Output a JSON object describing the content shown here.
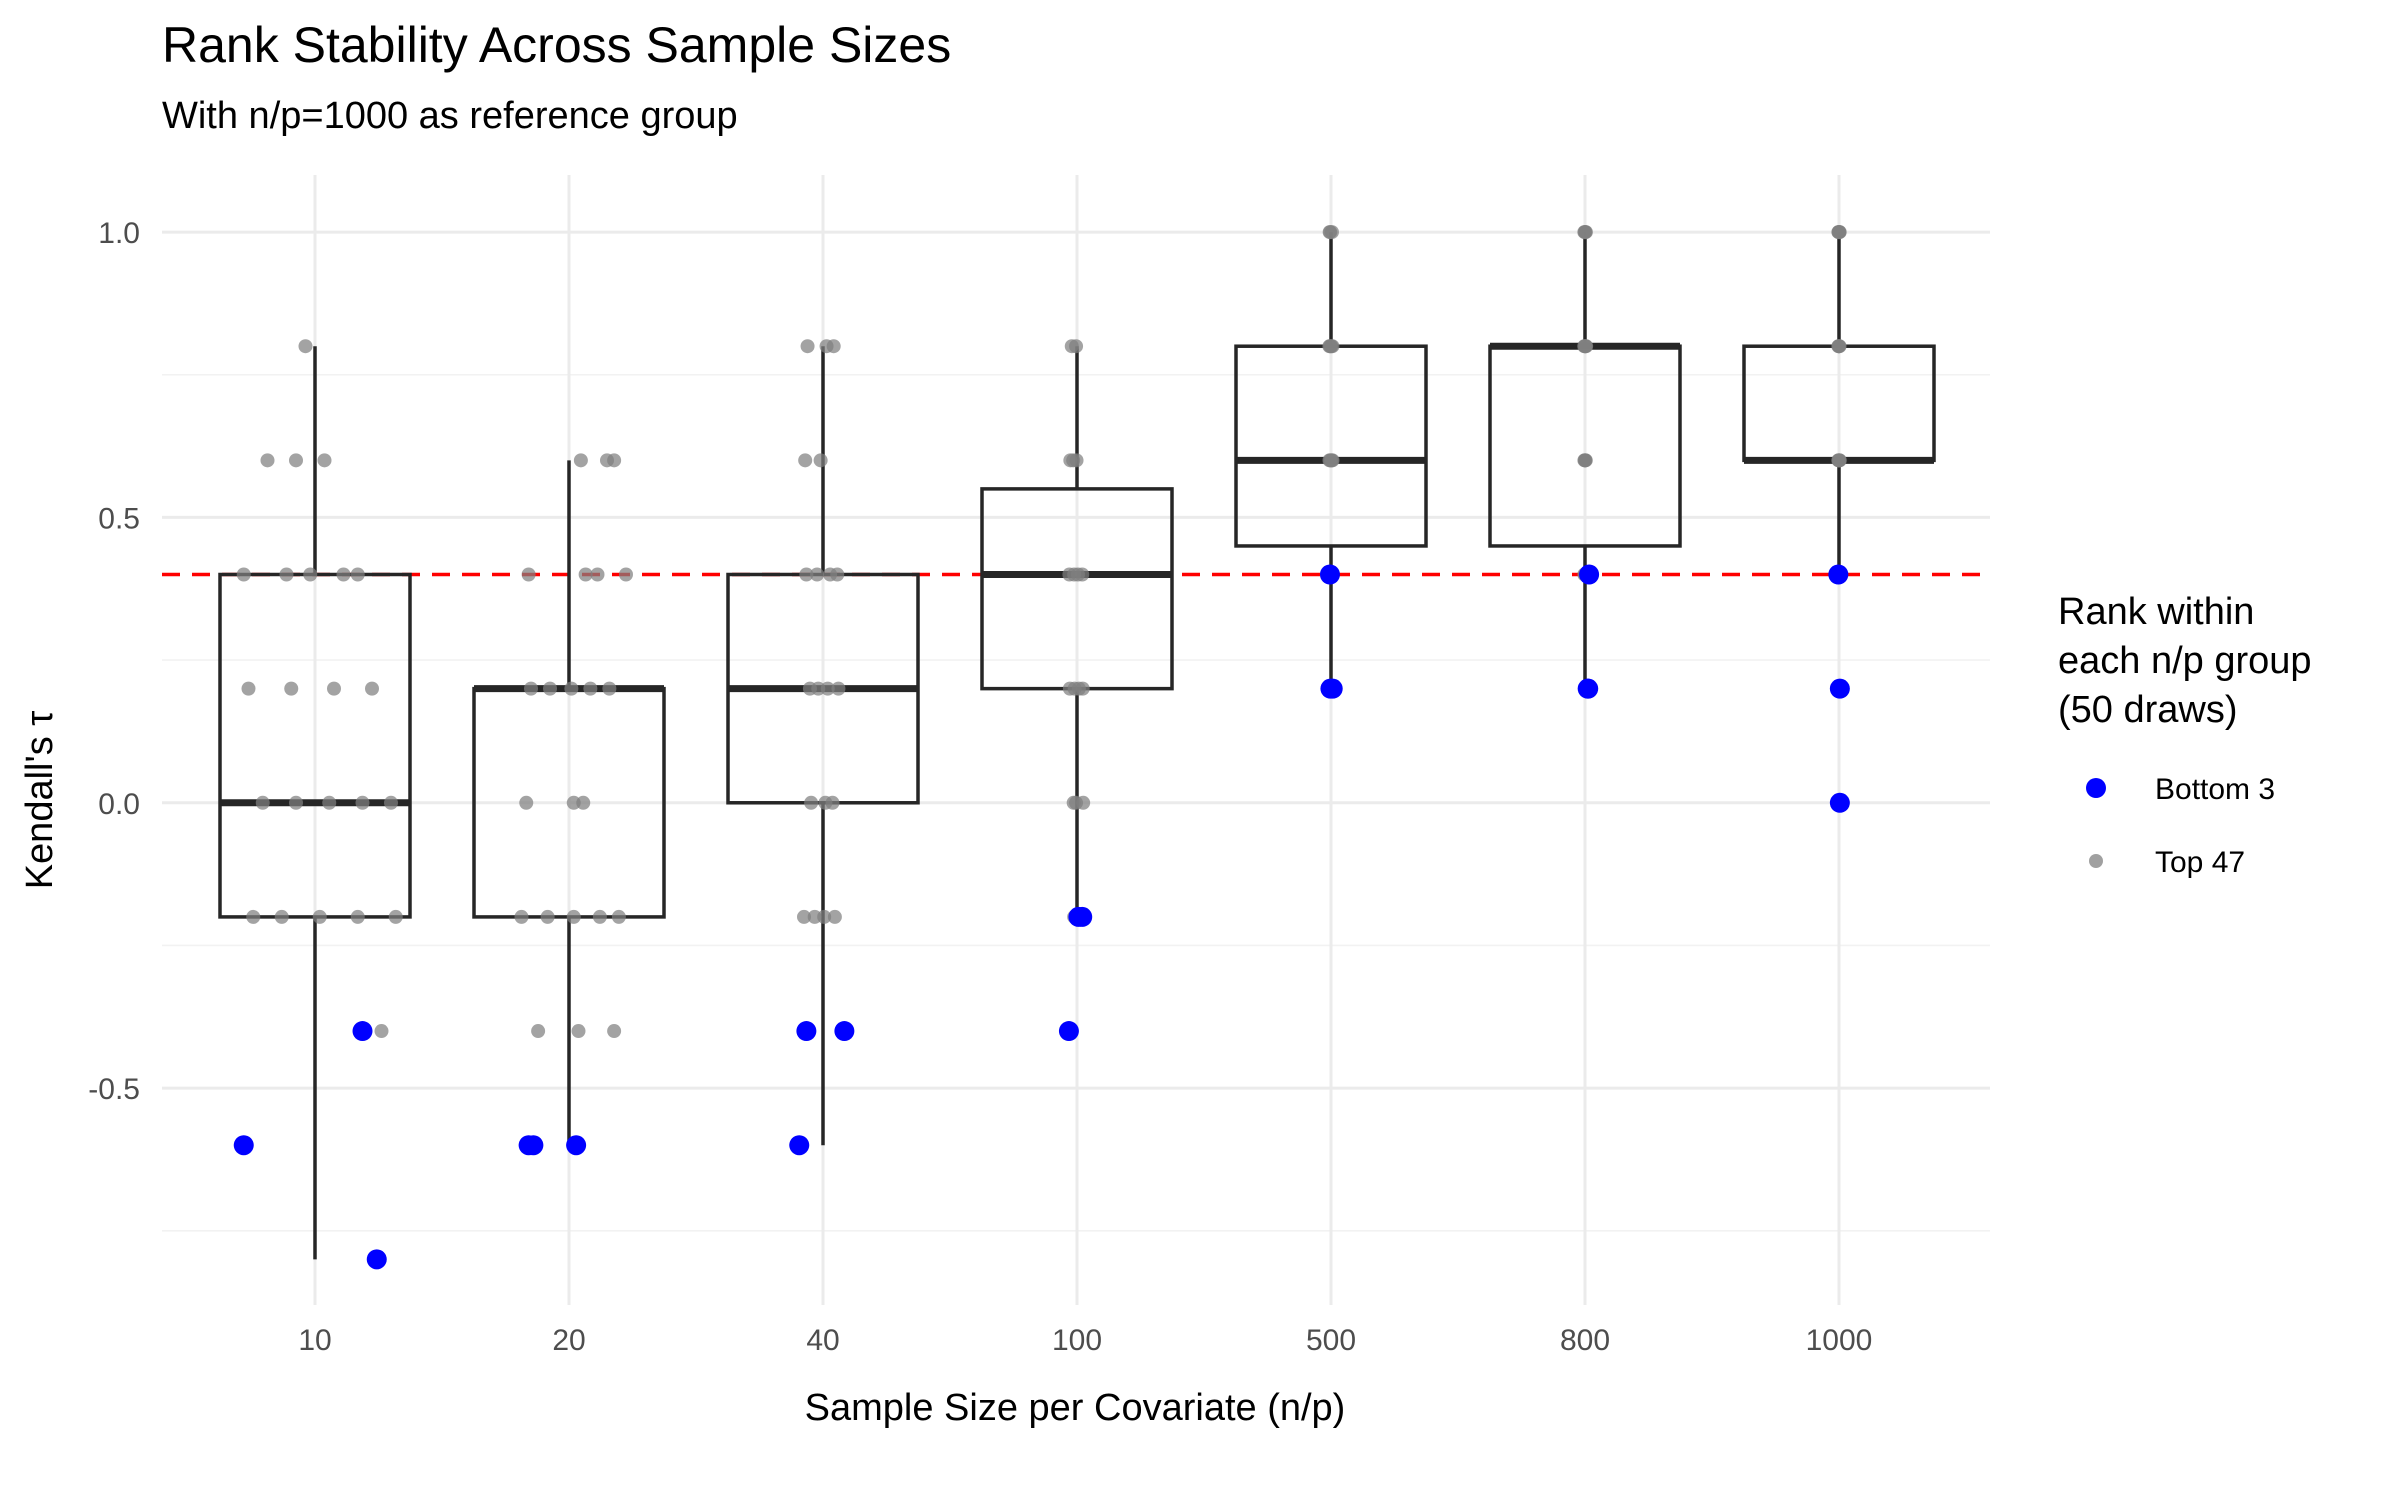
{
  "chart_data": {
    "type": "box",
    "title": "Rank Stability Across Sample Sizes",
    "subtitle": "With n/p=1000 as reference group",
    "xlabel": "Sample Size per Covariate (n/p)",
    "ylabel": "Kendall's τ",
    "categories": [
      "10",
      "20",
      "40",
      "100",
      "500",
      "800",
      "1000"
    ],
    "ylim": [
      -0.88,
      1.1
    ],
    "yticks": [
      -0.5,
      0.0,
      0.5,
      1.0
    ],
    "ytick_labels": [
      "-0.5",
      "0.0",
      "0.5",
      "1.0"
    ],
    "grid": true,
    "reference_line": {
      "y": 0.4,
      "color": "#ff0000",
      "style": "dashed"
    },
    "boxes": [
      {
        "category": "10",
        "whisker_low": -0.8,
        "q1": -0.2,
        "median": 0.0,
        "q3": 0.4,
        "whisker_high": 0.8
      },
      {
        "category": "20",
        "whisker_low": -0.6,
        "q1": -0.2,
        "median": 0.2,
        "q3": 0.2,
        "whisker_high": 0.6
      },
      {
        "category": "40",
        "whisker_low": -0.6,
        "q1": 0.0,
        "median": 0.2,
        "q3": 0.4,
        "whisker_high": 0.8
      },
      {
        "category": "100",
        "whisker_low": -0.2,
        "q1": 0.2,
        "median": 0.4,
        "q3": 0.55,
        "whisker_high": 0.8
      },
      {
        "category": "500",
        "whisker_low": 0.2,
        "q1": 0.45,
        "median": 0.6,
        "q3": 0.8,
        "whisker_high": 1.0
      },
      {
        "category": "800",
        "whisker_low": 0.2,
        "q1": 0.45,
        "median": 0.8,
        "q3": 0.8,
        "whisker_high": 1.0
      },
      {
        "category": "1000",
        "whisker_low": 0.4,
        "q1": 0.6,
        "median": 0.6,
        "q3": 0.8,
        "whisker_high": 1.0
      }
    ],
    "legend": {
      "title": [
        "Rank within",
        "each n/p group",
        "(50 draws)"
      ],
      "placement": "right",
      "entries": [
        {
          "label": "Bottom 3",
          "color": "#0000ff"
        },
        {
          "label": "Top 47",
          "color": "#808080"
        }
      ]
    },
    "series": [
      {
        "name": "Bottom 3",
        "color": "#0000ff",
        "points": [
          {
            "x": 8.5,
            "y": -0.6
          },
          {
            "x": 11.0,
            "y": -0.4
          },
          {
            "x": 11.3,
            "y": -0.8
          },
          {
            "x": 18.3,
            "y": -0.6
          },
          {
            "x": 18.5,
            "y": -0.6
          },
          {
            "x": 20.3,
            "y": -0.6
          },
          {
            "x": 38.0,
            "y": -0.6
          },
          {
            "x": 38.6,
            "y": -0.4
          },
          {
            "x": 41.8,
            "y": -0.4
          },
          {
            "x": 98.3,
            "y": -0.4
          },
          {
            "x": 100.3,
            "y": -0.2
          },
          {
            "x": 101.1,
            "y": -0.2
          },
          {
            "x": 498.9,
            "y": 0.4
          },
          {
            "x": 499.4,
            "y": 0.2
          },
          {
            "x": 501.8,
            "y": 0.2
          },
          {
            "x": 804.5,
            "y": 0.2
          },
          {
            "x": 805.4,
            "y": 0.2
          },
          {
            "x": 806.9,
            "y": 0.4
          },
          {
            "x": 998.6,
            "y": 0.4
          },
          {
            "x": 1001.8,
            "y": 0.2
          },
          {
            "x": 1001.8,
            "y": 0.0
          }
        ]
      },
      {
        "name": "Top 47",
        "color": "#808080",
        "points": [
          {
            "x": 9.8,
            "y": 0.8
          },
          {
            "x": 9.0,
            "y": 0.6
          },
          {
            "x": 9.6,
            "y": 0.6
          },
          {
            "x": 10.2,
            "y": 0.6
          },
          {
            "x": 8.5,
            "y": 0.4
          },
          {
            "x": 9.4,
            "y": 0.4
          },
          {
            "x": 9.9,
            "y": 0.4
          },
          {
            "x": 10.6,
            "y": 0.4
          },
          {
            "x": 10.9,
            "y": 0.4
          },
          {
            "x": 8.6,
            "y": 0.2
          },
          {
            "x": 9.5,
            "y": 0.2
          },
          {
            "x": 10.4,
            "y": 0.2
          },
          {
            "x": 11.2,
            "y": 0.2
          },
          {
            "x": 8.9,
            "y": 0.0
          },
          {
            "x": 9.6,
            "y": 0.0
          },
          {
            "x": 10.3,
            "y": 0.0
          },
          {
            "x": 11.0,
            "y": 0.0
          },
          {
            "x": 11.6,
            "y": 0.0
          },
          {
            "x": 8.7,
            "y": -0.2
          },
          {
            "x": 9.3,
            "y": -0.2
          },
          {
            "x": 10.1,
            "y": -0.2
          },
          {
            "x": 10.9,
            "y": -0.2
          },
          {
            "x": 11.7,
            "y": -0.2
          },
          {
            "x": 11.4,
            "y": -0.4
          },
          {
            "x": 20.5,
            "y": 0.6
          },
          {
            "x": 21.6,
            "y": 0.6
          },
          {
            "x": 21.9,
            "y": 0.6
          },
          {
            "x": 18.3,
            "y": 0.4
          },
          {
            "x": 20.7,
            "y": 0.4
          },
          {
            "x": 21.2,
            "y": 0.4
          },
          {
            "x": 22.4,
            "y": 0.4
          },
          {
            "x": 18.4,
            "y": 0.2
          },
          {
            "x": 19.2,
            "y": 0.2
          },
          {
            "x": 20.1,
            "y": 0.2
          },
          {
            "x": 20.9,
            "y": 0.2
          },
          {
            "x": 21.7,
            "y": 0.2
          },
          {
            "x": 18.2,
            "y": 0.0
          },
          {
            "x": 20.2,
            "y": 0.0
          },
          {
            "x": 20.6,
            "y": 0.0
          },
          {
            "x": 18.0,
            "y": -0.2
          },
          {
            "x": 19.1,
            "y": -0.2
          },
          {
            "x": 20.2,
            "y": -0.2
          },
          {
            "x": 21.3,
            "y": -0.2
          },
          {
            "x": 22.1,
            "y": -0.2
          },
          {
            "x": 18.7,
            "y": -0.4
          },
          {
            "x": 20.4,
            "y": -0.4
          },
          {
            "x": 21.9,
            "y": -0.4
          },
          {
            "x": 38.7,
            "y": 0.8
          },
          {
            "x": 40.3,
            "y": 0.8
          },
          {
            "x": 40.9,
            "y": 0.8
          },
          {
            "x": 38.5,
            "y": 0.6
          },
          {
            "x": 39.8,
            "y": 0.6
          },
          {
            "x": 38.6,
            "y": 0.4
          },
          {
            "x": 39.5,
            "y": 0.4
          },
          {
            "x": 40.6,
            "y": 0.4
          },
          {
            "x": 41.2,
            "y": 0.4
          },
          {
            "x": 38.9,
            "y": 0.2
          },
          {
            "x": 39.6,
            "y": 0.2
          },
          {
            "x": 40.4,
            "y": 0.2
          },
          {
            "x": 41.3,
            "y": 0.2
          },
          {
            "x": 39.0,
            "y": 0.0
          },
          {
            "x": 40.2,
            "y": 0.0
          },
          {
            "x": 40.8,
            "y": 0.0
          },
          {
            "x": 38.4,
            "y": -0.2
          },
          {
            "x": 39.3,
            "y": -0.2
          },
          {
            "x": 40.1,
            "y": -0.2
          },
          {
            "x": 41.0,
            "y": -0.2
          },
          {
            "x": 98.9,
            "y": 0.8
          },
          {
            "x": 99.8,
            "y": 0.8
          },
          {
            "x": 98.6,
            "y": 0.6
          },
          {
            "x": 99.2,
            "y": 0.6
          },
          {
            "x": 99.9,
            "y": 0.6
          },
          {
            "x": 98.4,
            "y": 0.4
          },
          {
            "x": 99.4,
            "y": 0.4
          },
          {
            "x": 100.2,
            "y": 0.4
          },
          {
            "x": 101.1,
            "y": 0.4
          },
          {
            "x": 98.5,
            "y": 0.2
          },
          {
            "x": 99.5,
            "y": 0.2
          },
          {
            "x": 100.4,
            "y": 0.2
          },
          {
            "x": 101.2,
            "y": 0.2
          },
          {
            "x": 99.3,
            "y": 0.0
          },
          {
            "x": 99.8,
            "y": 0.0
          },
          {
            "x": 101.3,
            "y": 0.0
          },
          {
            "x": 99.4,
            "y": -0.2
          },
          {
            "x": 101.3,
            "y": -0.2
          },
          {
            "x": 498.6,
            "y": 1.0
          },
          {
            "x": 499.2,
            "y": 1.0
          },
          {
            "x": 501.0,
            "y": 1.0
          },
          {
            "x": 498.3,
            "y": 0.8
          },
          {
            "x": 499.0,
            "y": 0.8
          },
          {
            "x": 499.7,
            "y": 0.8
          },
          {
            "x": 500.5,
            "y": 0.8
          },
          {
            "x": 501.5,
            "y": 0.8
          },
          {
            "x": 498.4,
            "y": 0.6
          },
          {
            "x": 499.2,
            "y": 0.6
          },
          {
            "x": 500.1,
            "y": 0.6
          },
          {
            "x": 500.9,
            "y": 0.6
          },
          {
            "x": 501.6,
            "y": 0.6
          },
          {
            "x": 499.5,
            "y": 0.4
          },
          {
            "x": 500.6,
            "y": 0.4
          },
          {
            "x": 501.3,
            "y": 0.4
          },
          {
            "x": 798.9,
            "y": 1.0
          },
          {
            "x": 799.8,
            "y": 1.0
          },
          {
            "x": 800.6,
            "y": 1.0
          },
          {
            "x": 801.5,
            "y": 1.0
          },
          {
            "x": 798.7,
            "y": 0.8
          },
          {
            "x": 799.6,
            "y": 0.8
          },
          {
            "x": 800.4,
            "y": 0.8
          },
          {
            "x": 801.2,
            "y": 0.8
          },
          {
            "x": 801.9,
            "y": 0.8
          },
          {
            "x": 799.0,
            "y": 0.6
          },
          {
            "x": 799.8,
            "y": 0.6
          },
          {
            "x": 800.6,
            "y": 0.6
          },
          {
            "x": 801.3,
            "y": 0.6
          },
          {
            "x": 798.9,
            "y": 0.4
          },
          {
            "x": 800.4,
            "y": 0.4
          },
          {
            "x": 801.9,
            "y": 0.4
          },
          {
            "x": 998.7,
            "y": 1.0
          },
          {
            "x": 999.3,
            "y": 1.0
          },
          {
            "x": 1000.1,
            "y": 1.0
          },
          {
            "x": 1000.9,
            "y": 1.0
          },
          {
            "x": 1001.4,
            "y": 1.0
          },
          {
            "x": 998.7,
            "y": 0.8
          },
          {
            "x": 999.5,
            "y": 0.8
          },
          {
            "x": 1000.3,
            "y": 0.8
          },
          {
            "x": 1001.1,
            "y": 0.8
          },
          {
            "x": 998.6,
            "y": 0.6
          },
          {
            "x": 999.4,
            "y": 0.6
          },
          {
            "x": 1000.2,
            "y": 0.6
          },
          {
            "x": 1000.9,
            "y": 0.6
          },
          {
            "x": 1001.6,
            "y": 0.6
          },
          {
            "x": 998.9,
            "y": 0.4
          },
          {
            "x": 1000.3,
            "y": 0.4
          },
          {
            "x": 1001.5,
            "y": 0.4
          }
        ]
      }
    ]
  }
}
